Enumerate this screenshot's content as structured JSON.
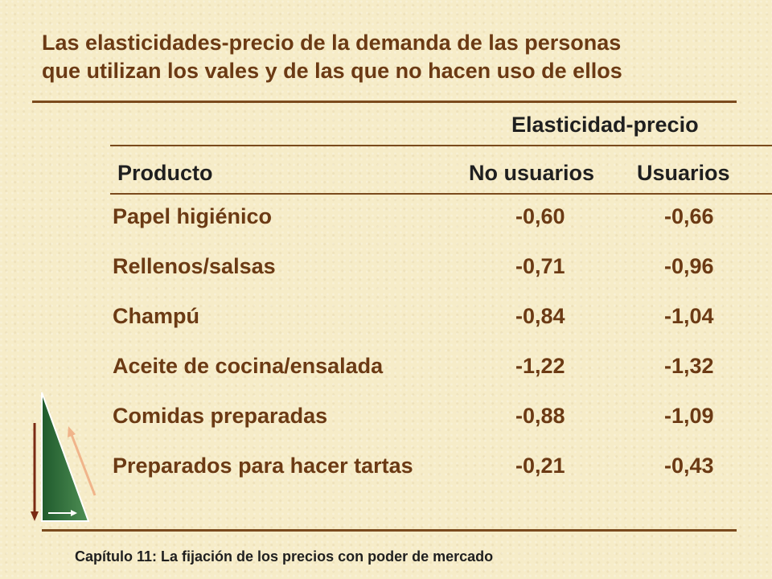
{
  "slide": {
    "title_line1": "Las elasticidades-precio de la demanda de las personas",
    "title_line2": "que utilizan los vales y de las que no hacen uso de ellos",
    "group_header": "Elasticidad-precio",
    "col_product": "Producto",
    "col_non_users": "No usuarios",
    "col_users": "Usuarios",
    "footer": "Capítulo 11: La fijación de los precios con poder de mercado"
  },
  "rows": [
    {
      "product": "Papel higiénico",
      "non_users": "-0,60",
      "users": "-0,66"
    },
    {
      "product": "Rellenos/salsas",
      "non_users": "-0,71",
      "users": "-0,96"
    },
    {
      "product": "Champú",
      "non_users": "-0,84",
      "users": "-1,04"
    },
    {
      "product": "Aceite de cocina/ensalada",
      "non_users": "-1,22",
      "users": "-1,32"
    },
    {
      "product": "Comidas preparadas",
      "non_users": "-0,88",
      "users": "-1,09"
    },
    {
      "product": "Preparados para hacer tartas",
      "non_users": "-0,21",
      "users": "-0,43"
    }
  ],
  "colors": {
    "accent": "#6b3a14",
    "rule": "#7a4a1d",
    "background": "#f6ecc8",
    "logo_green": "#2f6b3a"
  }
}
